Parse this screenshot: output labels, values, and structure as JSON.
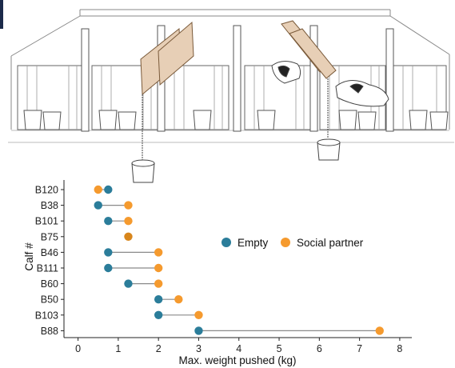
{
  "chart_data": {
    "type": "dumbbell",
    "xlabel": "Max. weight pushed (kg)",
    "ylabel": "Calf #",
    "xlim": [
      -0.35,
      8.3
    ],
    "x_ticks": [
      0,
      1,
      2,
      3,
      4,
      5,
      6,
      7,
      8
    ],
    "legend": {
      "placement": "center-right",
      "entries": [
        {
          "label": "Empty",
          "color": "#2b7d9a"
        },
        {
          "label": "Social partner",
          "color": "#f59a2e"
        }
      ]
    },
    "overlap_color": "#d8861c",
    "categories": [
      "B120",
      "B38",
      "B101",
      "B75",
      "B46",
      "B111",
      "B60",
      "B50",
      "B103",
      "B88"
    ],
    "series": [
      {
        "name": "Empty",
        "values": [
          0.75,
          0.5,
          0.75,
          1.25,
          0.75,
          0.75,
          1.25,
          2.0,
          2.0,
          3.0
        ]
      },
      {
        "name": "Social partner",
        "values": [
          0.5,
          1.25,
          1.25,
          1.25,
          2.0,
          2.0,
          2.0,
          2.5,
          3.0,
          7.5
        ]
      }
    ]
  }
}
